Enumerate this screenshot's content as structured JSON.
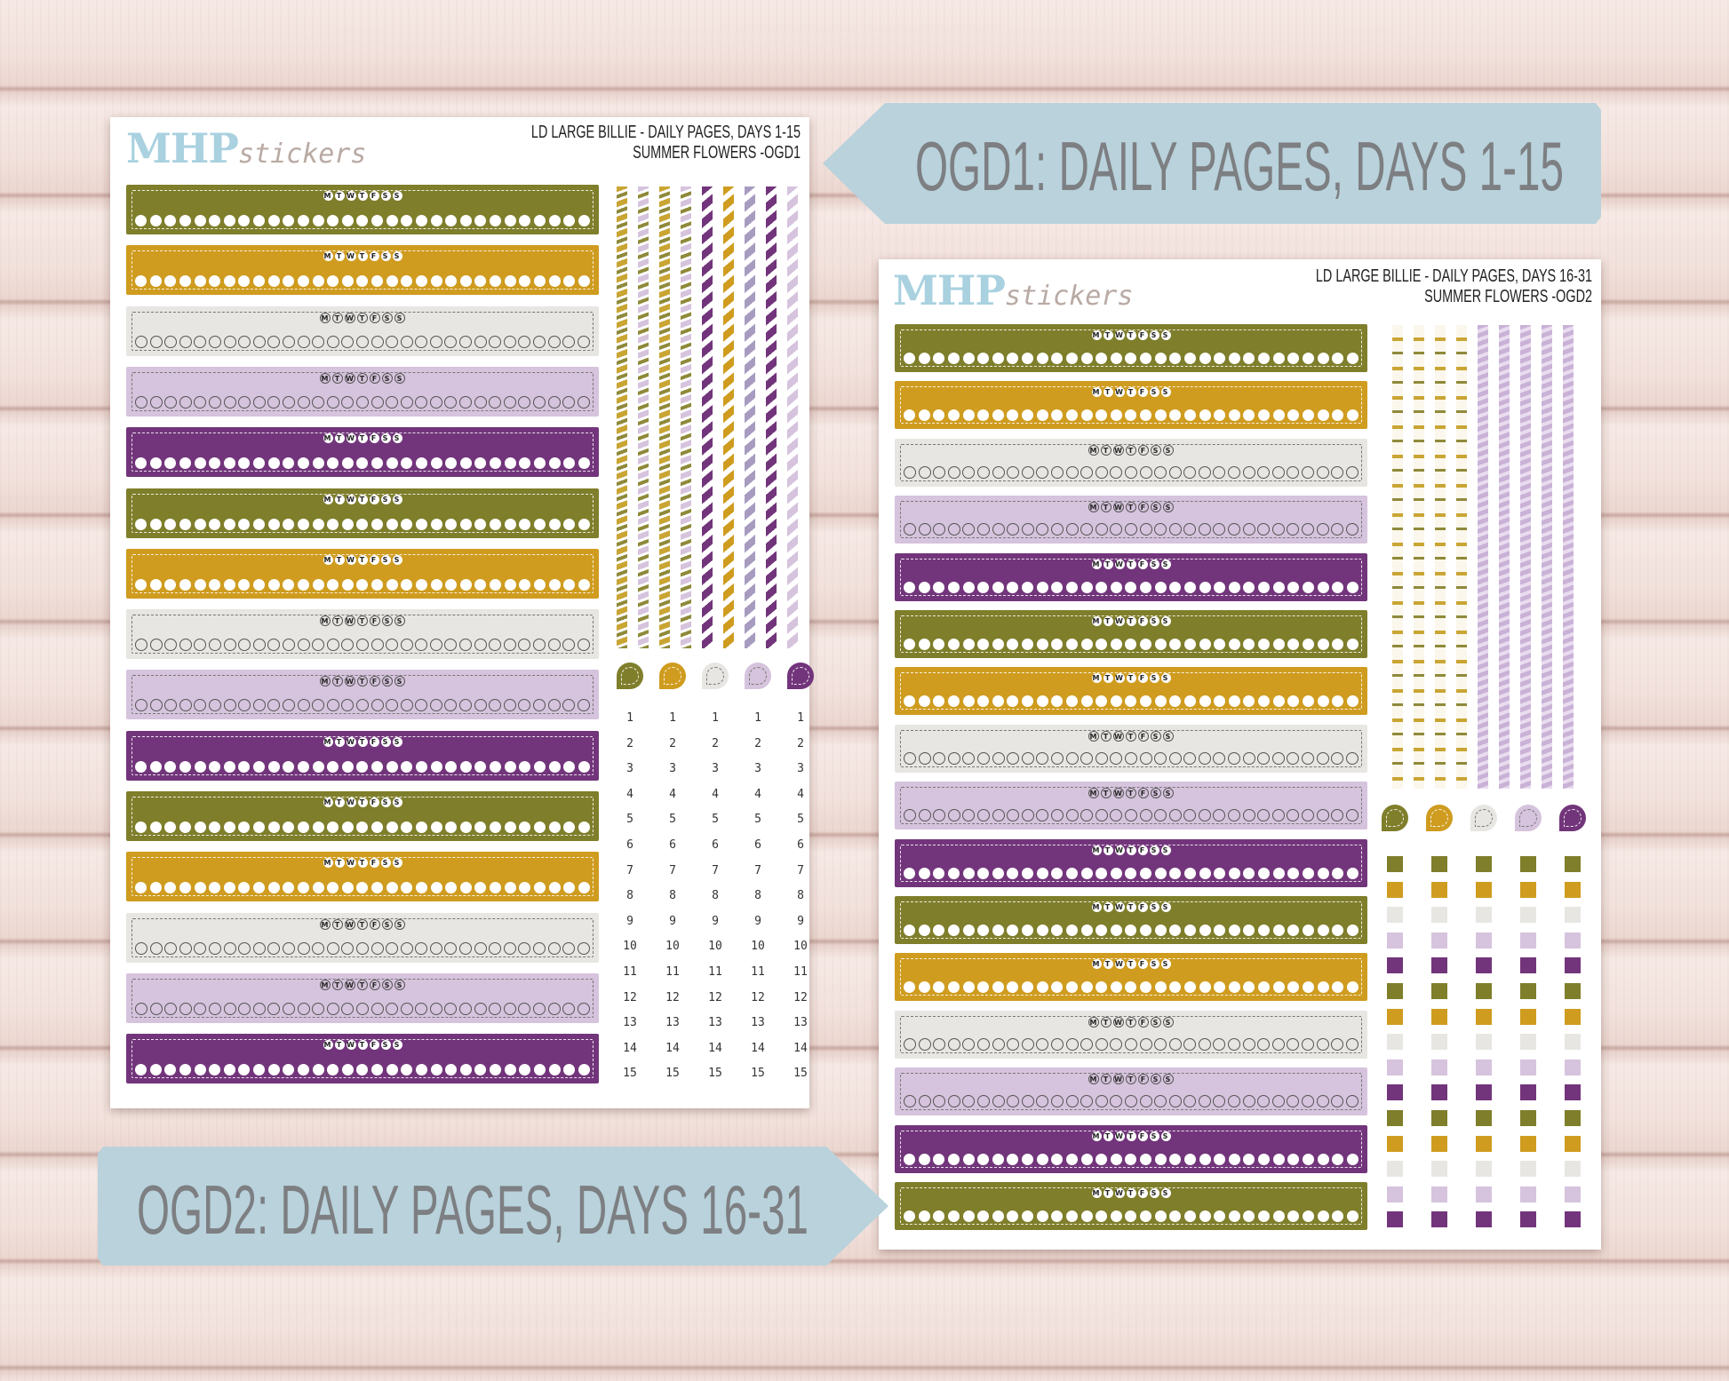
{
  "banners": {
    "top": "OGD1: DAILY PAGES, DAYS 1-15",
    "bottom": "OGD2: DAILY PAGES, DAYS 16-31"
  },
  "sheet1": {
    "logo_main": "MHP",
    "logo_sub": "stickers",
    "header_line1": "LD LARGE BILLIE  - DAILY PAGES, DAYS 1-15",
    "header_line2": "SUMMER FLOWERS -OGD1"
  },
  "sheet2": {
    "logo_main": "MHP",
    "logo_sub": "stickers",
    "header_line1": "LD LARGE BILLIE - DAILY PAGES, DAYS 16-31",
    "header_line2": "SUMMER FLOWERS -OGD2"
  },
  "weekdays": [
    "M",
    "T",
    "W",
    "T",
    "F",
    "S",
    "S"
  ],
  "numbers_1_15": [
    "1",
    "2",
    "3",
    "4",
    "5",
    "6",
    "7",
    "8",
    "9",
    "10",
    "11",
    "12",
    "13",
    "14",
    "15"
  ],
  "colors": {
    "olive": "#7f7e2b",
    "gold": "#cf9c1f",
    "grey": "#e7e6e2",
    "lavender": "#d6c3dd",
    "plum": "#72357b",
    "banner": "#b9d2dc",
    "banner_text": "#7d7f82"
  }
}
